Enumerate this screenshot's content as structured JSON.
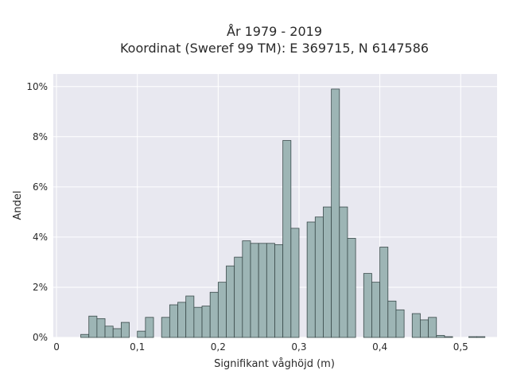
{
  "chart_data": {
    "type": "bar",
    "title_lines": [
      "År 1979 - 2019",
      "Koordinat (Sweref 99 TM): E 369715, N 6147586"
    ],
    "xlabel": "Signifikant våghöjd (m)",
    "ylabel": "Andel",
    "x_ticks": [
      {
        "value": 0,
        "label": "0"
      },
      {
        "value": 0.1,
        "label": "0,1"
      },
      {
        "value": 0.2,
        "label": "0,2"
      },
      {
        "value": 0.3,
        "label": "0,3"
      },
      {
        "value": 0.4,
        "label": "0,4"
      },
      {
        "value": 0.5,
        "label": "0,5"
      }
    ],
    "y_ticks": [
      {
        "value": 0,
        "label": "0%"
      },
      {
        "value": 2,
        "label": "2%"
      },
      {
        "value": 4,
        "label": "4%"
      },
      {
        "value": 6,
        "label": "6%"
      },
      {
        "value": 8,
        "label": "8%"
      },
      {
        "value": 10,
        "label": "10%"
      }
    ],
    "xlim": [
      -0.004,
      0.545
    ],
    "ylim": [
      0,
      10.5
    ],
    "bin_width": 0.01,
    "bin_start": 0.03,
    "values": [
      0.12,
      0.85,
      0.75,
      0.45,
      0.35,
      0.6,
      0.0,
      0.25,
      0.8,
      0.0,
      0.8,
      1.3,
      1.4,
      1.65,
      1.2,
      1.25,
      1.8,
      2.2,
      2.85,
      3.2,
      3.85,
      3.75,
      3.75,
      3.75,
      3.7,
      7.85,
      4.35,
      0.0,
      4.6,
      4.8,
      5.2,
      9.9,
      5.2,
      3.95,
      0.0,
      2.55,
      2.2,
      3.6,
      1.45,
      1.1,
      0.0,
      0.95,
      0.7,
      0.8,
      0.08,
      0.03,
      0.0,
      0.0,
      0.03,
      0.03
    ],
    "grid": true,
    "colors": {
      "plot_background": "#e8e8f0",
      "grid": "#ffffff",
      "bar_fill": "#9db5b5",
      "bar_edge": "#3a4a4a"
    }
  }
}
